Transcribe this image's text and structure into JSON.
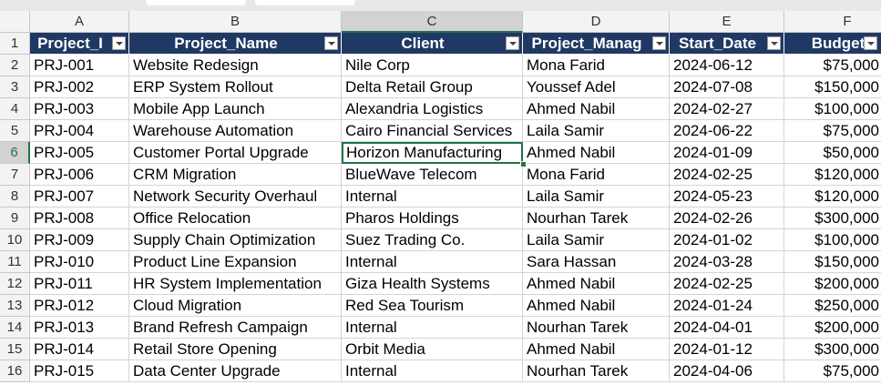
{
  "sheet": {
    "column_letters": [
      "A",
      "B",
      "C",
      "D",
      "E",
      "F"
    ],
    "row_numbers": [
      1,
      2,
      3,
      4,
      5,
      6,
      7,
      8,
      9,
      10,
      11,
      12,
      13,
      14,
      15,
      16
    ],
    "table": {
      "header": [
        "Project_I",
        "Project_Name",
        "Client",
        "Project_Manag",
        "Start_Date",
        "Budget"
      ],
      "rows": [
        [
          "PRJ-001",
          "Website Redesign",
          "Nile Corp",
          "Mona Farid",
          "2024-06-12",
          "$75,000"
        ],
        [
          "PRJ-002",
          "ERP System Rollout",
          "Delta Retail Group",
          "Youssef Adel",
          "2024-07-08",
          "$150,000"
        ],
        [
          "PRJ-003",
          "Mobile App Launch",
          "Alexandria Logistics",
          "Ahmed Nabil",
          "2024-02-27",
          "$100,000"
        ],
        [
          "PRJ-004",
          "Warehouse Automation",
          "Cairo Financial Services",
          "Laila Samir",
          "2024-06-22",
          "$75,000"
        ],
        [
          "PRJ-005",
          "Customer Portal Upgrade",
          "Horizon Manufacturing",
          "Ahmed Nabil",
          "2024-01-09",
          "$50,000"
        ],
        [
          "PRJ-006",
          "CRM Migration",
          "BlueWave Telecom",
          "Mona Farid",
          "2024-02-25",
          "$120,000"
        ],
        [
          "PRJ-007",
          "Network Security Overhaul",
          "Internal",
          "Laila Samir",
          "2024-05-23",
          "$120,000"
        ],
        [
          "PRJ-008",
          "Office Relocation",
          "Pharos Holdings",
          "Nourhan Tarek",
          "2024-02-26",
          "$300,000"
        ],
        [
          "PRJ-009",
          "Supply Chain Optimization",
          "Suez Trading Co.",
          "Laila Samir",
          "2024-01-02",
          "$100,000"
        ],
        [
          "PRJ-010",
          "Product Line Expansion",
          "Internal",
          "Sara Hassan",
          "2024-03-28",
          "$150,000"
        ],
        [
          "PRJ-011",
          "HR System Implementation",
          "Giza Health Systems",
          "Ahmed Nabil",
          "2024-02-25",
          "$200,000"
        ],
        [
          "PRJ-012",
          "Cloud Migration",
          "Red Sea Tourism",
          "Ahmed Nabil",
          "2024-01-24",
          "$250,000"
        ],
        [
          "PRJ-013",
          "Brand Refresh Campaign",
          "Internal",
          "Nourhan Tarek",
          "2024-04-01",
          "$200,000"
        ],
        [
          "PRJ-014",
          "Retail Store Opening",
          "Orbit Media",
          "Ahmed Nabil",
          "2024-01-12",
          "$300,000"
        ],
        [
          "PRJ-015",
          "Data Center Upgrade",
          "Internal",
          "Nourhan Tarek",
          "2024-04-06",
          "$75,000"
        ]
      ]
    }
  }
}
